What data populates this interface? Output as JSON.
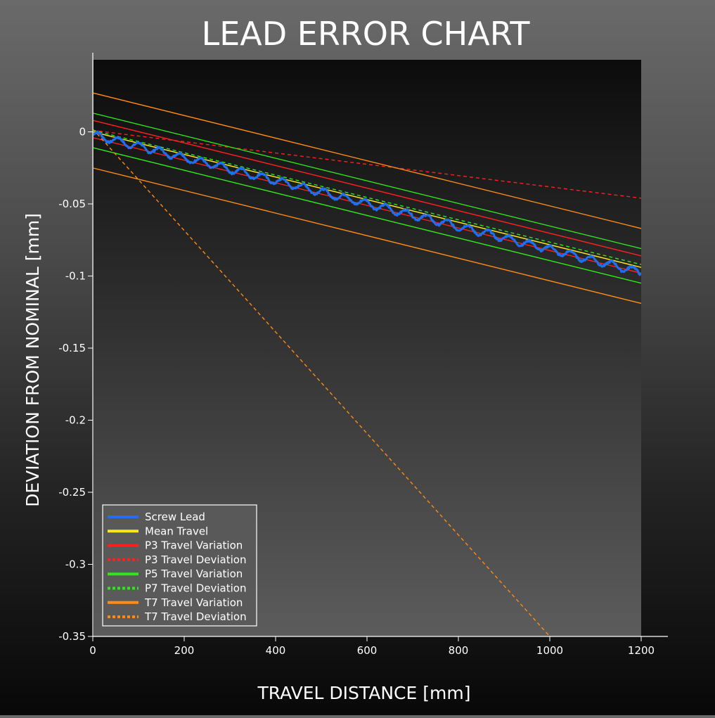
{
  "chart_data": {
    "type": "line",
    "title": "LEAD ERROR CHART",
    "xlabel": "TRAVEL DISTANCE [mm]",
    "ylabel": "DEVIATION FROM NOMINAL [mm]",
    "xlim": [
      0,
      1200
    ],
    "ylim": [
      -0.35,
      0.05
    ],
    "xticks": [
      0,
      200,
      400,
      600,
      800,
      1000,
      1200
    ],
    "xtick_labels": [
      "0",
      "200",
      "400",
      "600",
      "800",
      "1000",
      "1200"
    ],
    "yticks": [
      0,
      -0.05,
      -0.1,
      -0.15,
      -0.2,
      -0.25,
      -0.3,
      -0.35
    ],
    "ytick_labels": [
      "0",
      "-0.05",
      "-0.1",
      "-0.15",
      "-0.2",
      "-0.25",
      "-0.3",
      "-0.35"
    ],
    "legend_position": "bottom-left",
    "colors": {
      "screw": "#1f6ff0",
      "mean": "#ffe81a",
      "p3": "#ff1f1f",
      "p5": "#2ee81a",
      "t7": "#ff8a14"
    },
    "series": [
      {
        "name": "Screw Lead",
        "style": "noisy",
        "color_key": "screw",
        "start": -0.002,
        "slope": -7.95e-05,
        "wave_amp": 0.0025,
        "wave_period": 45,
        "jitter": 0.0015
      },
      {
        "name": "Mean Travel",
        "style": "solid",
        "color_key": "mean",
        "x": [
          0,
          1200
        ],
        "y": [
          0.0,
          -0.094
        ]
      },
      {
        "name": "P3 Travel Variation",
        "style": "solid",
        "color_key": "p3",
        "x": [
          0,
          1200
        ],
        "y": [
          0.008,
          -0.086
        ]
      },
      {
        "name": "P3 Travel Variation (lower)",
        "legend": false,
        "style": "solid",
        "color_key": "p3",
        "x": [
          0,
          1200
        ],
        "y": [
          -0.004,
          -0.098
        ]
      },
      {
        "name": "P3 Travel Deviation",
        "style": "dashed",
        "color_key": "p3",
        "x": [
          0,
          1200
        ],
        "y": [
          0.001,
          -0.046
        ]
      },
      {
        "name": "P5 Travel Variation",
        "style": "solid",
        "color_key": "p5",
        "x": [
          0,
          1200
        ],
        "y": [
          0.013,
          -0.081
        ]
      },
      {
        "name": "P5 Travel Variation (lower)",
        "legend": false,
        "style": "solid",
        "color_key": "p5",
        "x": [
          0,
          1200
        ],
        "y": [
          -0.011,
          -0.105
        ]
      },
      {
        "name": "P7 Travel Deviation",
        "style": "dashed",
        "color_key": "p5",
        "x": [
          0,
          1200
        ],
        "y": [
          0.001,
          -0.092
        ]
      },
      {
        "name": "T7 Travel Variation",
        "style": "solid",
        "color_key": "t7",
        "x": [
          0,
          1200
        ],
        "y": [
          0.027,
          -0.067
        ]
      },
      {
        "name": "T7 Travel Variation (lower)",
        "legend": false,
        "style": "solid",
        "color_key": "t7",
        "x": [
          0,
          1200
        ],
        "y": [
          -0.025,
          -0.119
        ]
      },
      {
        "name": "T7 Travel Deviation",
        "style": "dashed",
        "color_key": "t7",
        "x": [
          0,
          1000
        ],
        "y": [
          0.002,
          -0.35
        ]
      }
    ],
    "legend": [
      {
        "label": "Screw Lead",
        "color_key": "screw",
        "dash": false
      },
      {
        "label": "Mean Travel",
        "color_key": "mean",
        "dash": false
      },
      {
        "label": "P3 Travel Variation",
        "color_key": "p3",
        "dash": false
      },
      {
        "label": "P3 Travel Deviation",
        "color_key": "p3",
        "dash": true
      },
      {
        "label": "P5 Travel Variation",
        "color_key": "p5",
        "dash": false
      },
      {
        "label": "P7 Travel Deviation",
        "color_key": "p5",
        "dash": true
      },
      {
        "label": "T7 Travel Variation",
        "color_key": "t7",
        "dash": false
      },
      {
        "label": "T7 Travel Deviation",
        "color_key": "t7",
        "dash": true
      }
    ]
  }
}
